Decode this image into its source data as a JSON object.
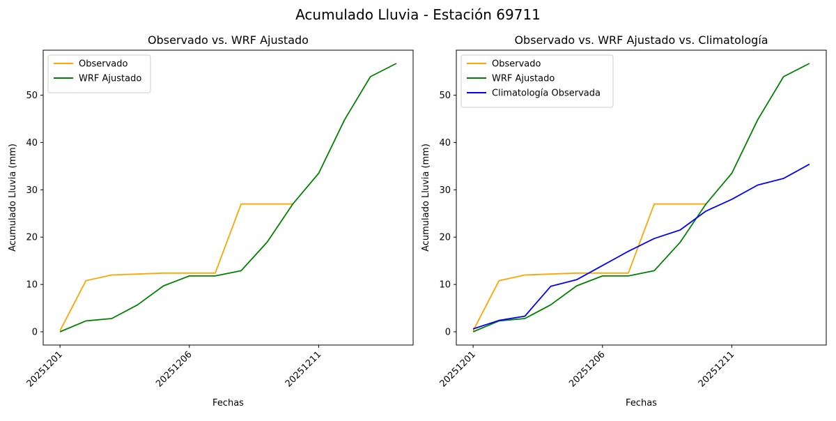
{
  "figure": {
    "suptitle": "Acumulado Lluvia - Estación 69711"
  },
  "colors": {
    "observado": "#ffa500",
    "wrf": "#008000",
    "climatologia": "#0000ff"
  },
  "chart_data": [
    {
      "type": "line",
      "title": "Observado vs. WRF Ajustado",
      "xlabel": "Fechas",
      "ylabel": "Acumulado Lluvia (mm)",
      "x": [
        "20251201",
        "20251202",
        "20251203",
        "20251204",
        "20251205",
        "20251206",
        "20251207",
        "20251208",
        "20251209",
        "20251210",
        "20251211",
        "20251212",
        "20251213",
        "20251214"
      ],
      "xticks": [
        "20251201",
        "20251206",
        "20251211"
      ],
      "yticks": [
        0,
        10,
        20,
        30,
        40,
        50
      ],
      "ylim": [
        -2.8,
        59.5
      ],
      "legend": "upper-left",
      "grid": false,
      "series": [
        {
          "name": "Observado",
          "color_key": "observado",
          "values": [
            0.2,
            10.8,
            12.0,
            12.2,
            12.4,
            12.4,
            12.4,
            27.0,
            27.0,
            27.0,
            null,
            null,
            null,
            null
          ]
        },
        {
          "name": "WRF Ajustado",
          "color_key": "wrf",
          "values": [
            0.0,
            2.3,
            2.8,
            5.7,
            9.7,
            11.8,
            11.8,
            12.9,
            18.9,
            27.0,
            33.5,
            44.8,
            53.9,
            56.7
          ]
        }
      ]
    },
    {
      "type": "line",
      "title": "Observado vs. WRF Ajustado vs. Climatología",
      "xlabel": "Fechas",
      "ylabel": "Acumulado Lluvia (mm)",
      "x": [
        "20251201",
        "20251202",
        "20251203",
        "20251204",
        "20251205",
        "20251206",
        "20251207",
        "20251208",
        "20251209",
        "20251210",
        "20251211",
        "20251212",
        "20251213",
        "20251214"
      ],
      "xticks": [
        "20251201",
        "20251206",
        "20251211"
      ],
      "yticks": [
        0,
        10,
        20,
        30,
        40,
        50
      ],
      "ylim": [
        -2.8,
        59.5
      ],
      "legend": "upper-left",
      "grid": false,
      "series": [
        {
          "name": "Observado",
          "color_key": "observado",
          "values": [
            0.2,
            10.8,
            12.0,
            12.2,
            12.4,
            12.4,
            12.4,
            27.0,
            27.0,
            27.0,
            null,
            null,
            null,
            null
          ]
        },
        {
          "name": "WRF Ajustado",
          "color_key": "wrf",
          "values": [
            0.0,
            2.3,
            2.8,
            5.7,
            9.7,
            11.8,
            11.8,
            12.9,
            18.9,
            27.0,
            33.5,
            44.8,
            53.9,
            56.7
          ]
        },
        {
          "name": "Climatología Observada",
          "color_key": "climatologia",
          "values": [
            0.6,
            2.4,
            3.3,
            9.6,
            11.0,
            14.0,
            17.0,
            19.7,
            21.5,
            25.5,
            28.0,
            31.0,
            32.4,
            35.4
          ]
        }
      ]
    }
  ]
}
